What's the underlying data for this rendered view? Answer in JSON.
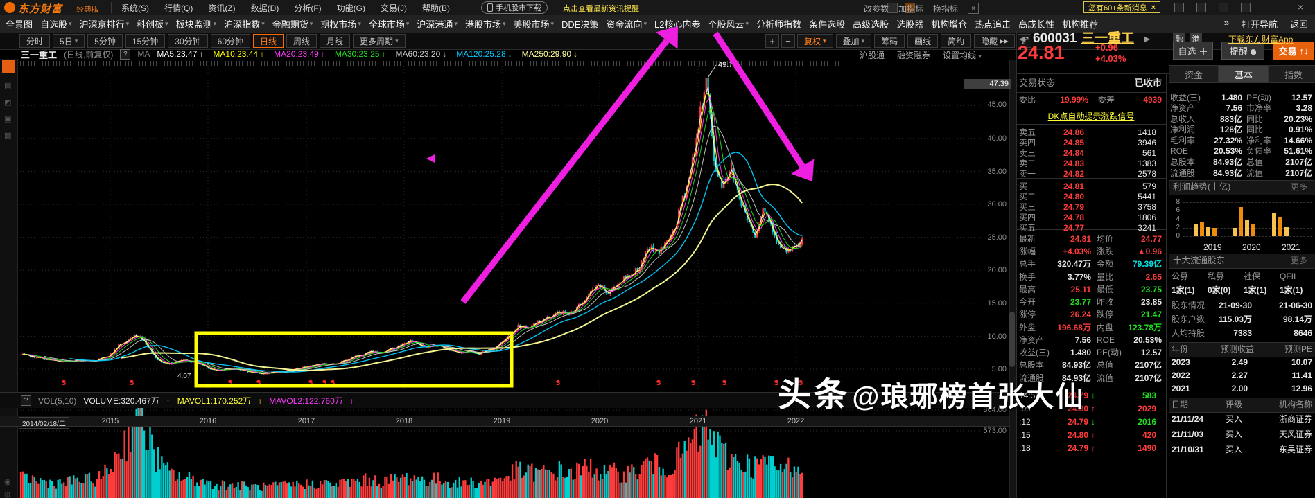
{
  "window": {
    "logo": "东方财富",
    "edition": "经典版",
    "menus": [
      "系统(S)",
      "行情(Q)",
      "资讯(Z)",
      "数据(D)",
      "分析(F)",
      "功能(G)",
      "交易(J)",
      "帮助(B)"
    ],
    "phone_download": "手机股市下载",
    "headline_link": "点击查看最新资讯提醒",
    "notice": "您有60+条新消息"
  },
  "nav": {
    "items": [
      "全景图",
      "自选股",
      "沪深京排行",
      "科创板",
      "板块监测",
      "沪深指数",
      "金融期货",
      "期权市场",
      "全球市场",
      "沪深港通",
      "港股市场",
      "美股市场",
      "DDE决策",
      "资金流向",
      "L2核心内参",
      "个股风云",
      "分析师指数",
      "条件选股",
      "高级选股",
      "选股器",
      "机构增仓",
      "热点追击",
      "高成长性",
      "机构推荐"
    ],
    "caret_indexes": [
      1,
      2,
      3,
      4,
      5,
      6,
      7,
      8,
      9,
      10,
      11,
      13,
      15
    ],
    "more": "»",
    "open_nav": "打开导航",
    "back": "返回"
  },
  "toolbar": {
    "periods": [
      "分时",
      "5日",
      "5分钟",
      "15分钟",
      "30分钟",
      "60分钟",
      "日线",
      "周线",
      "月线",
      "更多周期"
    ],
    "active_period": "日线",
    "caret_indexes": [
      1,
      9
    ],
    "zoom_in": "+",
    "zoom_out": "−",
    "actions": [
      "复权",
      "叠加",
      "筹码",
      "画线",
      "简约",
      "隐藏"
    ],
    "hide_arrows": "▶▶"
  },
  "chart": {
    "title": "三一重工",
    "subtitle": "(日线,前复权)",
    "help": "?",
    "ma_label": "MA",
    "mas": [
      {
        "name": "MA5",
        "value": "23.47",
        "dir": "up",
        "color": "#ffffff"
      },
      {
        "name": "MA10",
        "value": "23.44",
        "dir": "up",
        "color": "#ffff00"
      },
      {
        "name": "MA20",
        "value": "23.49",
        "dir": "up",
        "color": "#ff3bff"
      },
      {
        "name": "MA30",
        "value": "23.25",
        "dir": "up",
        "color": "#1ee11e"
      },
      {
        "name": "MA60",
        "value": "23.20",
        "dir": "down",
        "color": "#cccccc"
      },
      {
        "name": "MA120",
        "value": "25.28",
        "dir": "down",
        "color": "#00ccff"
      },
      {
        "name": "MA250",
        "value": "29.90",
        "dir": "down",
        "color": "#ffff99"
      }
    ],
    "corner_links": [
      "沪股通",
      "融资融券",
      "设置均线"
    ],
    "price_ticks": [
      "47.39",
      "45.00",
      "40.00",
      "35.00",
      "30.00",
      "25.00",
      "20.00",
      "15.00",
      "10.00",
      "5.00"
    ],
    "high_label": "49.70",
    "low_label": "4.07",
    "signal": "S"
  },
  "volume_pane": {
    "help": "?",
    "indicator": "VOL(5,10)",
    "volume": "VOLUME:320.467万",
    "mavol1": "MAVOL1:170.252万",
    "mavol2": "MAVOL2:122.760万",
    "links": [
      "改参数",
      "加指标",
      "换指标"
    ],
    "ticks": [
      "864.00",
      "573.00"
    ]
  },
  "timeline": {
    "start_date": "2014/02/18/二",
    "years": [
      "2015",
      "2016",
      "2017",
      "2018",
      "2019",
      "2020",
      "2021",
      "2022"
    ]
  },
  "watermark": {
    "brand": "头条",
    "handle": "@琅琊榜首张大仙"
  },
  "stock": {
    "code": "600031",
    "name": "三一重工",
    "badges": [
      "融",
      "港"
    ],
    "app_link": "下载东方财富App",
    "price": "24.81",
    "change": "+0.96",
    "change_pct": "+4.03%",
    "btn_watch": "自选",
    "btn_alert": "提醒",
    "btn_trade": "交易",
    "status_label": "交易状态",
    "status": "已收市",
    "weibi_label": "委比",
    "weibi": "19.99%",
    "weicha_label": "委差",
    "weicha": "4939",
    "dk_link": "DK点自动提示涨跌信号",
    "asks": [
      {
        "level": "卖五",
        "price": "24.86",
        "vol": "1418"
      },
      {
        "level": "卖四",
        "price": "24.85",
        "vol": "3946"
      },
      {
        "level": "卖三",
        "price": "24.84",
        "vol": "561"
      },
      {
        "level": "卖二",
        "price": "24.83",
        "vol": "1383"
      },
      {
        "level": "卖一",
        "price": "24.82",
        "vol": "2578"
      }
    ],
    "bids": [
      {
        "level": "买一",
        "price": "24.81",
        "vol": "579"
      },
      {
        "level": "买二",
        "price": "24.80",
        "vol": "5441"
      },
      {
        "level": "买三",
        "price": "24.79",
        "vol": "3758"
      },
      {
        "level": "买四",
        "price": "24.78",
        "vol": "1806"
      },
      {
        "level": "买五",
        "price": "24.77",
        "vol": "3241"
      }
    ],
    "quote_rows": [
      [
        {
          "l": "最新",
          "v": "24.81",
          "c": "red"
        },
        {
          "l": "均价",
          "v": "24.77",
          "c": "red"
        }
      ],
      [
        {
          "l": "涨幅",
          "v": "+4.03%",
          "c": "red"
        },
        {
          "l": "涨跌",
          "v": "▲0.96",
          "c": "red"
        }
      ],
      [
        {
          "l": "总手",
          "v": "320.47万",
          "c": "white"
        },
        {
          "l": "金额",
          "v": "79.39亿",
          "c": "cyan"
        }
      ],
      [
        {
          "l": "换手",
          "v": "3.77%",
          "c": "white"
        },
        {
          "l": "量比",
          "v": "2.65",
          "c": "red"
        }
      ],
      [
        {
          "l": "最高",
          "v": "25.11",
          "c": "red"
        },
        {
          "l": "最低",
          "v": "23.75",
          "c": "green"
        }
      ],
      [
        {
          "l": "今开",
          "v": "23.77",
          "c": "green"
        },
        {
          "l": "昨收",
          "v": "23.85",
          "c": "white"
        }
      ],
      [
        {
          "l": "涨停",
          "v": "26.24",
          "c": "red"
        },
        {
          "l": "跌停",
          "v": "21.47",
          "c": "green"
        }
      ],
      [
        {
          "l": "外盘",
          "v": "196.68万",
          "c": "red"
        },
        {
          "l": "内盘",
          "v": "123.78万",
          "c": "green"
        }
      ],
      [
        {
          "l": "净资产",
          "v": "7.56",
          "c": "white"
        },
        {
          "l": "ROE",
          "v": "20.53%",
          "c": "white"
        }
      ],
      [
        {
          "l": "收益(三)",
          "v": "1.480",
          "c": "white"
        },
        {
          "l": "PE(动)",
          "v": "12.57",
          "c": "white"
        }
      ],
      [
        {
          "l": "总股本",
          "v": "84.93亿",
          "c": "white"
        },
        {
          "l": "总值",
          "v": "2107亿",
          "c": "white"
        }
      ],
      [
        {
          "l": "流通股",
          "v": "84.93亿",
          "c": "white"
        },
        {
          "l": "流值",
          "v": "2107亿",
          "c": "white"
        }
      ]
    ],
    "ticks": [
      {
        "time": "14:56",
        "price": "24.79",
        "dir": "down",
        "vol": "583"
      },
      {
        "time": ":09",
        "price": "24.80",
        "dir": "up",
        "vol": "2029"
      },
      {
        "time": ":12",
        "price": "24.79",
        "dir": "down",
        "vol": "2016"
      },
      {
        "time": ":15",
        "price": "24.80",
        "dir": "up",
        "vol": "420"
      },
      {
        "time": ":18",
        "price": "24.79",
        "dir": "up",
        "vol": "1490"
      }
    ]
  },
  "info": {
    "tabs": [
      "资金",
      "基本",
      "指数"
    ],
    "active_tab": "基本",
    "fin_rows": [
      [
        [
          "收益(三)",
          "1.480"
        ],
        [
          "PE(动)",
          "12.57"
        ]
      ],
      [
        [
          "净资产",
          "7.56"
        ],
        [
          "市净率",
          "3.28"
        ]
      ],
      [
        [
          "总收入",
          "883亿"
        ],
        [
          "同比",
          "20.23%"
        ]
      ],
      [
        [
          "净利润",
          "126亿"
        ],
        [
          "同比",
          "0.91%"
        ]
      ],
      [
        [
          "毛利率",
          "27.32%"
        ],
        [
          "净利率",
          "14.66%"
        ]
      ],
      [
        [
          "ROE",
          "20.53%"
        ],
        [
          "负债率",
          "51.61%"
        ]
      ],
      [
        [
          "总股本",
          "84.93亿"
        ],
        [
          "总值",
          "2107亿"
        ]
      ],
      [
        [
          "流通股",
          "84.93亿"
        ],
        [
          "流值",
          "2107亿"
        ]
      ]
    ],
    "profit_title": "利润趋势(十亿)",
    "more": "更多",
    "holders_title": "十大流通股东",
    "holder_cols": [
      "公募",
      "私募",
      "社保",
      "QFII"
    ],
    "holder_vals": [
      "1家(1)",
      "0家(0)",
      "1家(1)",
      "1家(1)"
    ],
    "holder_rows": [
      [
        "股东情况",
        "21-09-30",
        "21-06-30"
      ],
      [
        "股东户数",
        "115.03万",
        "98.14万"
      ],
      [
        "人均持股",
        "7383",
        "8646"
      ]
    ],
    "forecast_header": [
      "年份",
      "预测收益",
      "预测PE"
    ],
    "forecast_rows": [
      [
        "2023",
        "2.49",
        "10.07"
      ],
      [
        "2022",
        "2.27",
        "11.41"
      ],
      [
        "2021",
        "2.00",
        "12.96"
      ]
    ],
    "rating_header": [
      "日期",
      "评级",
      "机构名称"
    ],
    "rating_rows": [
      [
        "21/11/24",
        "买入",
        "浙商证券"
      ],
      [
        "21/11/03",
        "买入",
        "天风证券"
      ],
      [
        "21/10/31",
        "买入",
        "东吴证券"
      ]
    ]
  },
  "chart_data": [
    {
      "type": "candlestick",
      "title": "三一重工 日线 前复权 2014/02 - 2022/02",
      "x_years": [
        2015,
        2016,
        2017,
        2018,
        2019,
        2020,
        2021,
        2022
      ],
      "monthly_closes": [
        7.2,
        7.0,
        6.8,
        6.5,
        6.3,
        6.1,
        6.2,
        6.4,
        6.3,
        6.2,
        6.6,
        7.2,
        8.6,
        9.2,
        10.3,
        9.6,
        7.6,
        6.2,
        5.8,
        6.1,
        6.3,
        6.1,
        5.8,
        5.2,
        4.7,
        5.0,
        5.2,
        4.9,
        4.6,
        4.4,
        4.3,
        4.5,
        4.7,
        4.9,
        5.1,
        5.3,
        5.6,
        5.9,
        5.7,
        6.0,
        6.4,
        6.9,
        7.3,
        7.7,
        7.5,
        7.9,
        8.3,
        8.9,
        9.3,
        8.7,
        8.3,
        8.7,
        8.2,
        7.8,
        7.4,
        7.9,
        7.3,
        7.7,
        8.2,
        9.2,
        10.4,
        11.6,
        11.1,
        11.9,
        12.5,
        13.1,
        13.7,
        13.3,
        14.1,
        15.3,
        16.9,
        17.6,
        16.4,
        17.9,
        18.7,
        19.6,
        20.6,
        23.6,
        22.6,
        24.0,
        25.6,
        30.2,
        34.6,
        41.5,
        49.7,
        36.0,
        33.0,
        35.5,
        31.5,
        28.0,
        25.5,
        29.5,
        27.0,
        23.5,
        22.8,
        23.4,
        24.81
      ],
      "y_ticks": [
        47.39,
        45,
        40,
        35,
        30,
        25,
        20,
        15,
        10,
        5
      ],
      "high": 49.7,
      "low": 4.07,
      "last_close": 24.81,
      "prev_close": 23.85
    },
    {
      "type": "bar",
      "title": "利润趋势(十亿)",
      "ylim": [
        0,
        8
      ],
      "yticks": [
        8,
        6,
        4,
        2,
        0
      ],
      "groups": [
        {
          "year": "2019",
          "values": [
            3.0,
            3.5,
            2.2,
            1.9
          ]
        },
        {
          "year": "2020",
          "values": [
            2.0,
            6.9,
            3.9,
            2.9
          ]
        },
        {
          "year": "2021",
          "values": [
            5.6,
            4.6,
            2.2
          ]
        }
      ]
    },
    {
      "type": "bar",
      "title": "成交量 VOL(5,10)",
      "volume_profile_monthly": [
        0.3,
        0.32,
        0.28,
        0.26,
        0.25,
        0.24,
        0.26,
        0.3,
        0.28,
        0.3,
        0.34,
        0.5,
        0.75,
        0.95,
        1.45,
        1.25,
        0.85,
        0.55,
        0.42,
        0.36,
        0.32,
        0.3,
        0.28,
        0.24,
        0.22,
        0.22,
        0.2,
        0.2,
        0.19,
        0.18,
        0.18,
        0.19,
        0.2,
        0.21,
        0.22,
        0.22,
        0.23,
        0.24,
        0.22,
        0.23,
        0.25,
        0.27,
        0.28,
        0.3,
        0.26,
        0.28,
        0.3,
        0.32,
        0.34,
        0.3,
        0.28,
        0.3,
        0.27,
        0.25,
        0.24,
        0.26,
        0.24,
        0.26,
        0.28,
        0.32,
        0.38,
        0.45,
        0.4,
        0.42,
        0.4,
        0.42,
        0.44,
        0.4,
        0.42,
        0.46,
        0.5,
        0.42,
        0.38,
        0.42,
        0.4,
        0.42,
        0.45,
        0.6,
        0.5,
        0.52,
        0.55,
        0.7,
        0.85,
        1.0,
        1.1,
        0.95,
        0.7,
        0.65,
        0.6,
        0.55,
        0.5,
        0.6,
        0.52,
        0.46,
        0.5,
        0.55,
        0.6
      ]
    }
  ],
  "glyphs": {
    "caret": "▾",
    "up": "↑",
    "down": "↓",
    "tri": "▲",
    "left": "◀",
    "right": "▶",
    "close": "×",
    "expand": "⤢",
    "ff": "▶▶",
    "plus": "+"
  },
  "colors": {
    "up": "#ff3b3b",
    "down": "#00cfcf",
    "accent": "#ff6a00",
    "annotation": "#ee1fe0",
    "box": "#ffff00"
  }
}
